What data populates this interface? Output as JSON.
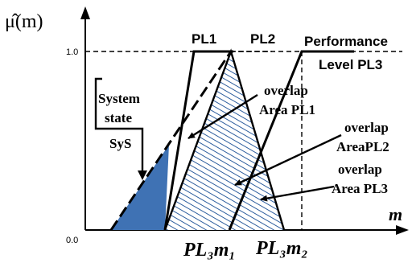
{
  "y_axis": {
    "label": "μ̂(m)",
    "tick_top": "1.0",
    "tick_origin": "0.0"
  },
  "x_axis": {
    "label": "m",
    "tick_m1": "PL₃m₁",
    "tick_m2": "PL₃m₂"
  },
  "labels": {
    "pl1": "PL1",
    "pl2": "PL2",
    "performance": "Performance",
    "level_pl3": "Level PL3",
    "system_state_l1": "System",
    "system_state_l2": "state",
    "system_state_l3": "SyS",
    "overlap1_l1": "overlap",
    "overlap1_l2": "Area PL1",
    "overlap2_l1": "overlap",
    "overlap2_l2": "AreaPL2",
    "overlap3_l1": "overlap",
    "overlap3_l2": "Area PL3"
  },
  "colors": {
    "fill_dark": "#3f72b4",
    "hatch": "#2e5e9e",
    "line": "#000000"
  }
}
